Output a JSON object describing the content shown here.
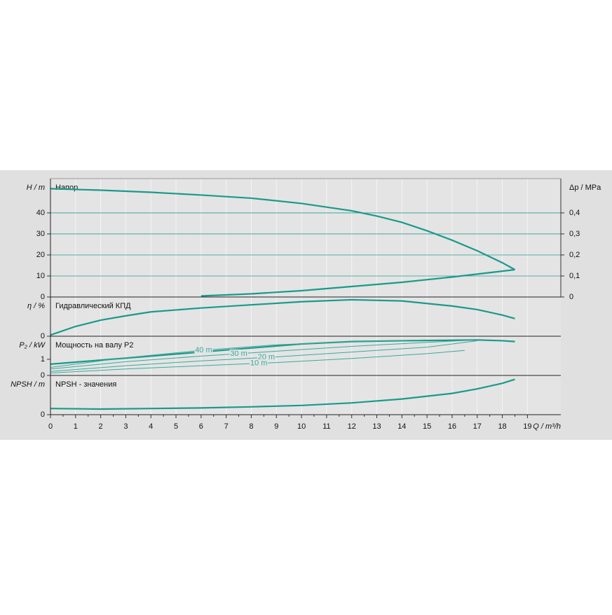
{
  "chart_data": [
    {
      "type": "line",
      "title": "Напор",
      "ylabel": "H / m",
      "y2label": "Δp / MPa",
      "ylim": [
        0,
        56.3
      ],
      "yticks": [
        0,
        10,
        20,
        30,
        40
      ],
      "y2lim": [
        0,
        0.563
      ],
      "y2ticks": [
        0,
        {
          "value": 0.1,
          "label": "0,1"
        },
        {
          "value": 0.2,
          "label": "0,2"
        },
        {
          "value": 0.3,
          "label": "0,3"
        },
        {
          "value": 0.4,
          "label": "0,4"
        }
      ],
      "grid": true,
      "series": [
        {
          "color": "#1a9a8a",
          "width": 2.2,
          "x": [
            0,
            2,
            4,
            6,
            8,
            10,
            12,
            13,
            14,
            15,
            16,
            17,
            18,
            18.5
          ],
          "values": [
            51.5,
            50.8,
            49.8,
            48.5,
            47,
            44.5,
            41,
            38.5,
            35.5,
            31.5,
            27,
            22,
            16.3,
            13
          ]
        },
        {
          "color": "#1a9a8a",
          "width": 2.2,
          "x": [
            6,
            8,
            10,
            12,
            14,
            16,
            18.5
          ],
          "values": [
            0.5,
            1.5,
            3,
            5,
            7,
            9.5,
            13
          ]
        }
      ]
    },
    {
      "type": "line",
      "title": "Гидравлический КПД",
      "ylabel": "η / %",
      "ylim": [
        0,
        100
      ],
      "yticks": [
        0
      ],
      "series": [
        {
          "color": "#1a9a8a",
          "width": 2.2,
          "x": [
            0,
            1,
            2,
            3,
            4,
            6,
            8,
            10,
            12,
            14,
            16,
            17,
            18,
            18.5
          ],
          "values": [
            3,
            25,
            41,
            52,
            62,
            72,
            80,
            88,
            93,
            90,
            77,
            68,
            54,
            45
          ]
        }
      ]
    },
    {
      "type": "line",
      "title": "Мощность на валу P2",
      "ylabel": "P₂ / kW",
      "ylim": [
        0,
        2.43
      ],
      "yticks": [
        0,
        1
      ],
      "series": [
        {
          "color": "#1a9a8a",
          "width": 2.2,
          "x": [
            0,
            2,
            4,
            6,
            8,
            10,
            12,
            14,
            16,
            17,
            18,
            18.5
          ],
          "values": [
            0.7,
            0.95,
            1.2,
            1.45,
            1.7,
            1.95,
            2.1,
            2.15,
            2.18,
            2.2,
            2.15,
            2.1
          ]
        },
        {
          "name": "40 m",
          "color": "#3aa99b",
          "width": 1,
          "x": [
            0,
            3,
            6,
            9,
            12,
            15
          ],
          "values": [
            0.5,
            1.1,
            1.55,
            1.9,
            2.1,
            2.2
          ]
        },
        {
          "name": "30 m",
          "color": "#3aa99b",
          "width": 1,
          "x": [
            0,
            3,
            6,
            9,
            12,
            15,
            17
          ],
          "values": [
            0.4,
            0.85,
            1.2,
            1.5,
            1.8,
            2.05,
            2.2
          ]
        },
        {
          "name": "20 m",
          "color": "#3aa99b",
          "width": 1,
          "x": [
            0,
            3,
            6,
            9,
            12,
            15,
            17
          ],
          "values": [
            0.25,
            0.6,
            0.9,
            1.15,
            1.45,
            1.75,
            2.15
          ]
        },
        {
          "name": "10 m",
          "color": "#3aa99b",
          "width": 1,
          "x": [
            0,
            3,
            6,
            9,
            12,
            15,
            16.5
          ],
          "values": [
            0.15,
            0.4,
            0.6,
            0.8,
            1.05,
            1.35,
            1.55
          ]
        }
      ]
    },
    {
      "type": "line",
      "title": "NPSH - значения",
      "ylabel": "NPSH / m",
      "xlabel": "Q / m³/h",
      "ylim": [
        0,
        14
      ],
      "yticks": [
        0
      ],
      "xlim": [
        0,
        20.33
      ],
      "xticks": [
        0,
        1,
        2,
        3,
        4,
        5,
        6,
        7,
        8,
        9,
        10,
        11,
        12,
        13,
        14,
        15,
        16,
        17,
        18,
        19
      ],
      "series": [
        {
          "color": "#1a9a8a",
          "width": 2.2,
          "x": [
            0,
            2,
            4,
            6,
            8,
            10,
            12,
            14,
            16,
            17,
            18,
            18.5
          ],
          "values": [
            2.2,
            2.0,
            2.2,
            2.4,
            2.8,
            3.3,
            4.2,
            5.6,
            7.6,
            9.2,
            11.2,
            12.6
          ]
        }
      ]
    }
  ]
}
